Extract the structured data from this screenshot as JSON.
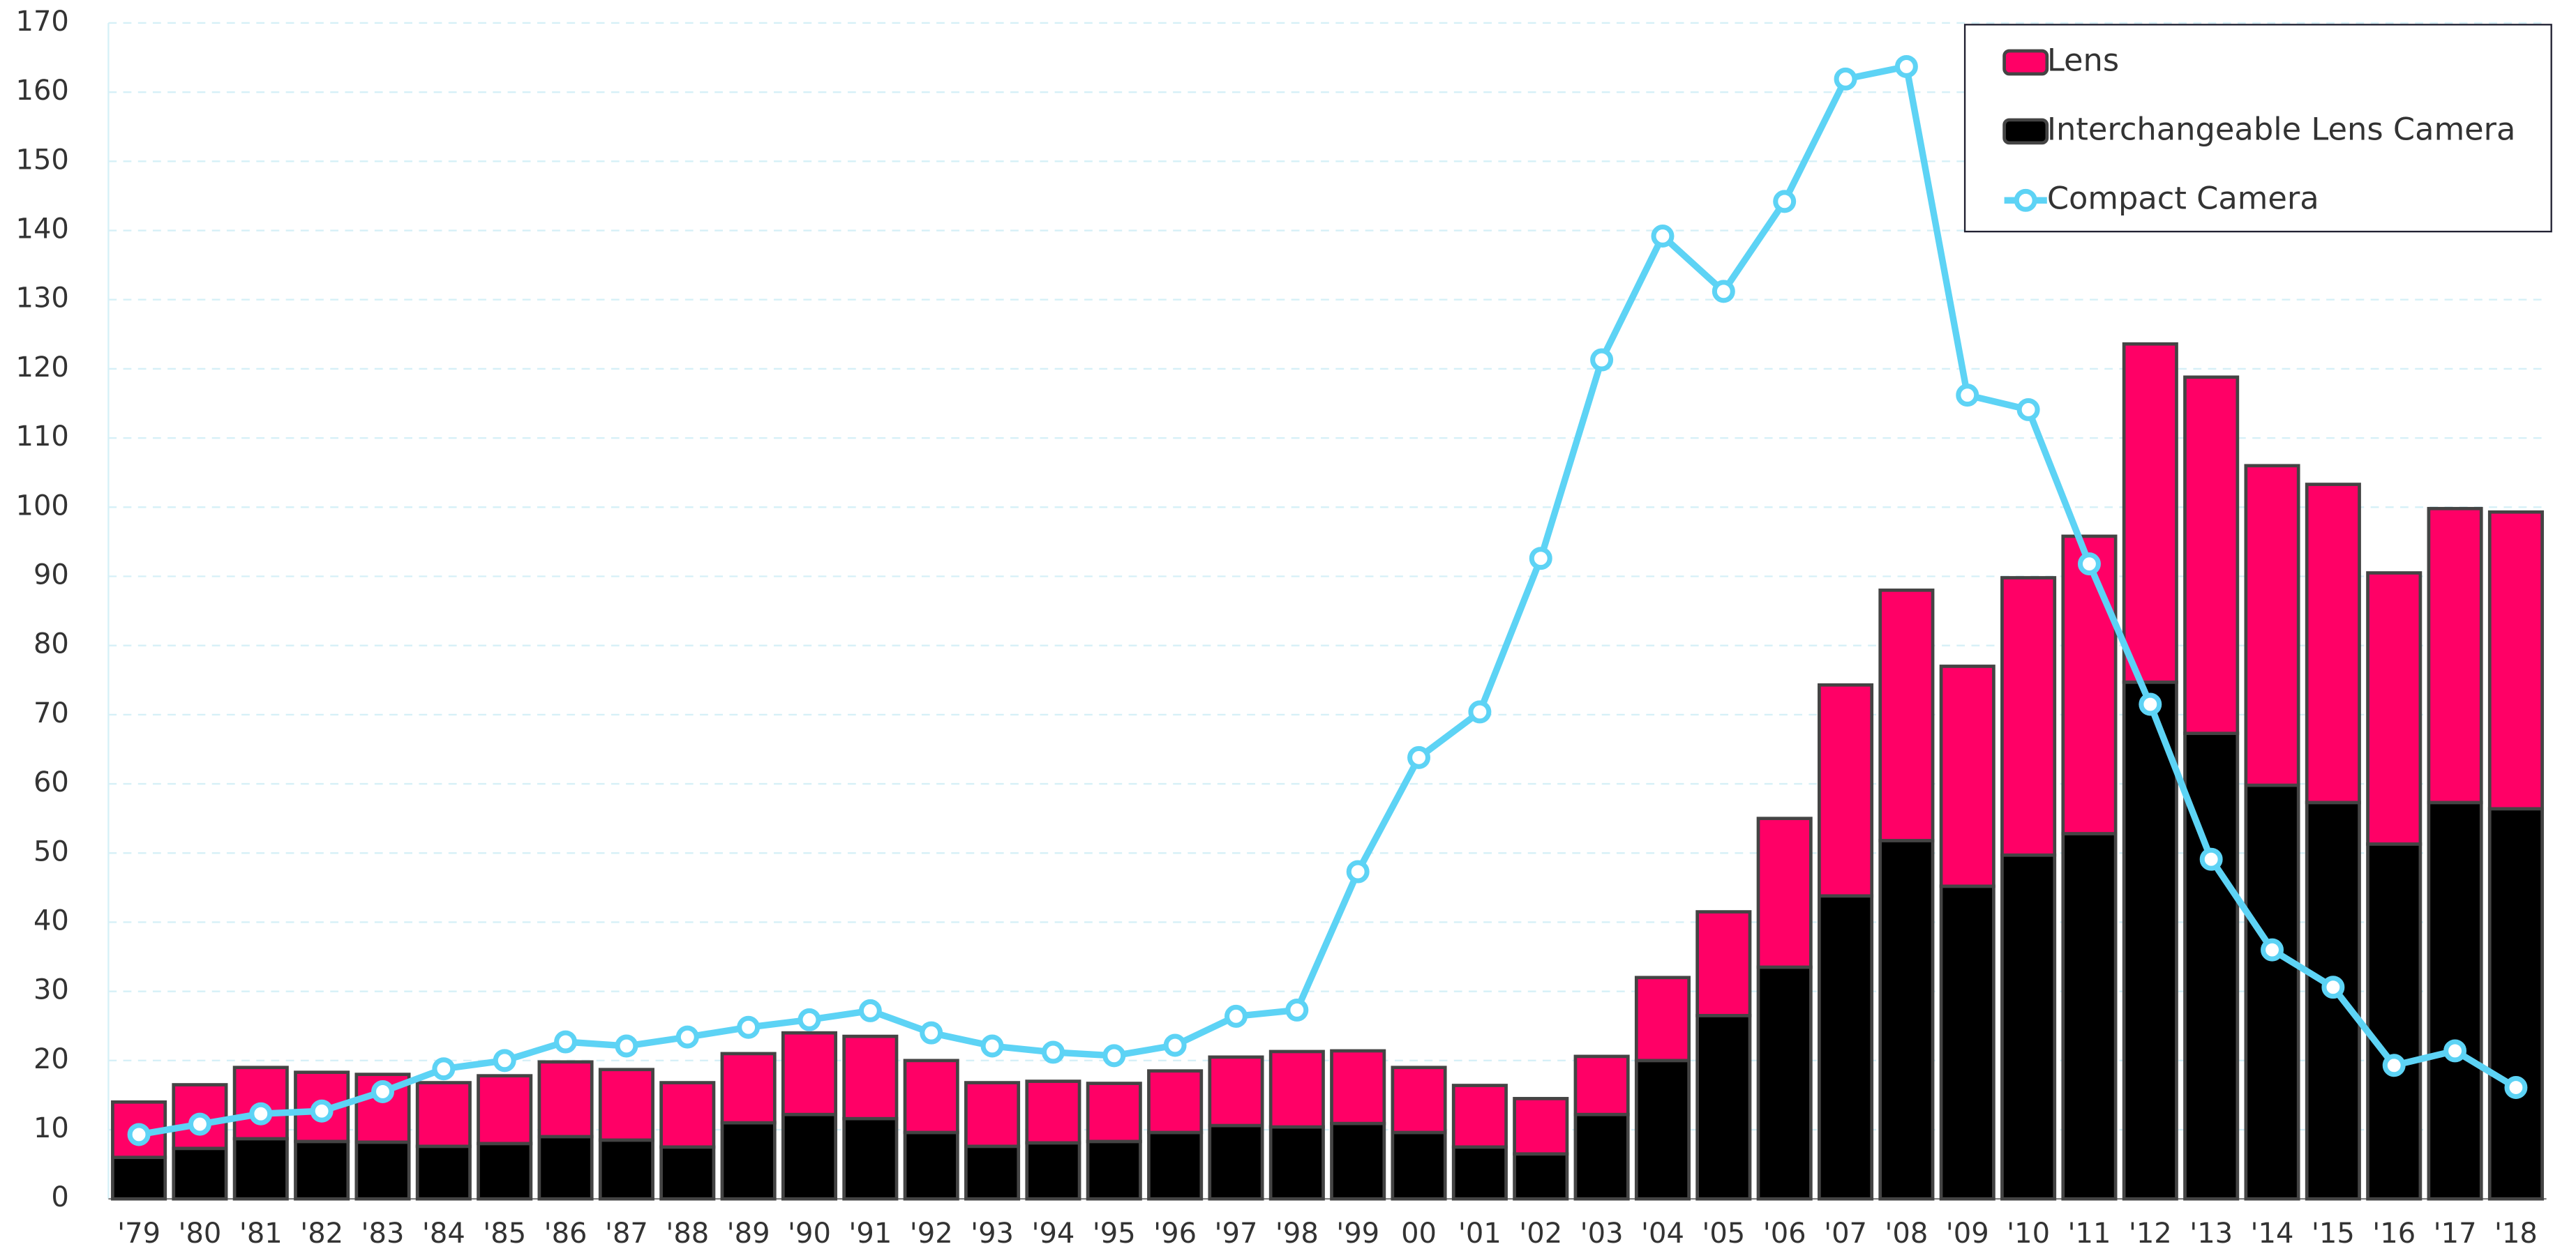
{
  "chart_data": {
    "type": "combo",
    "categories": [
      "'79",
      "'80",
      "'81",
      "'82",
      "'83",
      "'84",
      "'85",
      "'86",
      "'87",
      "'88",
      "'89",
      "'90",
      "'91",
      "'92",
      "'93",
      "'94",
      "'95",
      "'96",
      "'97",
      "'98",
      "'99",
      "00",
      "'01",
      "'02",
      "'03",
      "'04",
      "'05",
      "'06",
      "'07",
      "'08",
      "'09",
      "'10",
      "'11",
      "'12",
      "'13",
      "'14",
      "'15",
      "'16",
      "'17",
      "'18"
    ],
    "series": [
      {
        "name": "Lens",
        "type": "bar",
        "stack": true,
        "color": "#ff0066",
        "values": [
          8,
          9.2,
          10.3,
          10,
          9.8,
          9.2,
          9.8,
          10.8,
          10.2,
          9.3,
          10,
          11.8,
          11.9,
          10.4,
          9.2,
          8.9,
          8.4,
          8.9,
          9.9,
          10.9,
          10.5,
          9.4,
          8.9,
          8,
          8.4,
          12,
          15,
          21.5,
          30.5,
          36.2,
          31.8,
          40.1,
          43,
          48.9,
          51.5,
          46.2,
          46,
          39.2,
          42.5,
          42.9
        ]
      },
      {
        "name": "Interchangeable Lens Camera",
        "type": "bar",
        "stack": true,
        "color": "#000000",
        "values": [
          6,
          7.3,
          8.7,
          8.3,
          8.2,
          7.6,
          8,
          9,
          8.5,
          7.5,
          11,
          12.2,
          11.6,
          9.6,
          7.6,
          8.1,
          8.3,
          9.6,
          10.6,
          10.4,
          10.9,
          9.6,
          7.5,
          6.5,
          12.2,
          20,
          26.5,
          33.5,
          43.8,
          51.8,
          45.2,
          49.7,
          52.8,
          74.7,
          67.3,
          59.8,
          57.3,
          51.3,
          57.3,
          56.4
        ]
      },
      {
        "name": "Compact Camera",
        "type": "line",
        "color": "#5dd3f5",
        "values": [
          9.3,
          10.8,
          12.3,
          12.7,
          15.5,
          18.8,
          20,
          22.7,
          22.1,
          23.4,
          24.8,
          25.9,
          27.2,
          24,
          22.1,
          21.2,
          20.7,
          22.2,
          26.4,
          27.3,
          47.3,
          63.8,
          70.4,
          92.6,
          121.3,
          139.2,
          131.2,
          144.2,
          161.9,
          163.7,
          116.2,
          114.1,
          91.8,
          71.5,
          49.1,
          36,
          30.6,
          19.3,
          21.4,
          16.1
        ]
      }
    ],
    "ylim": [
      0,
      170
    ],
    "yticks": [
      0,
      10,
      20,
      30,
      40,
      50,
      60,
      70,
      80,
      90,
      100,
      110,
      120,
      130,
      140,
      150,
      160,
      170
    ],
    "grid": true,
    "legend": "top-right"
  }
}
